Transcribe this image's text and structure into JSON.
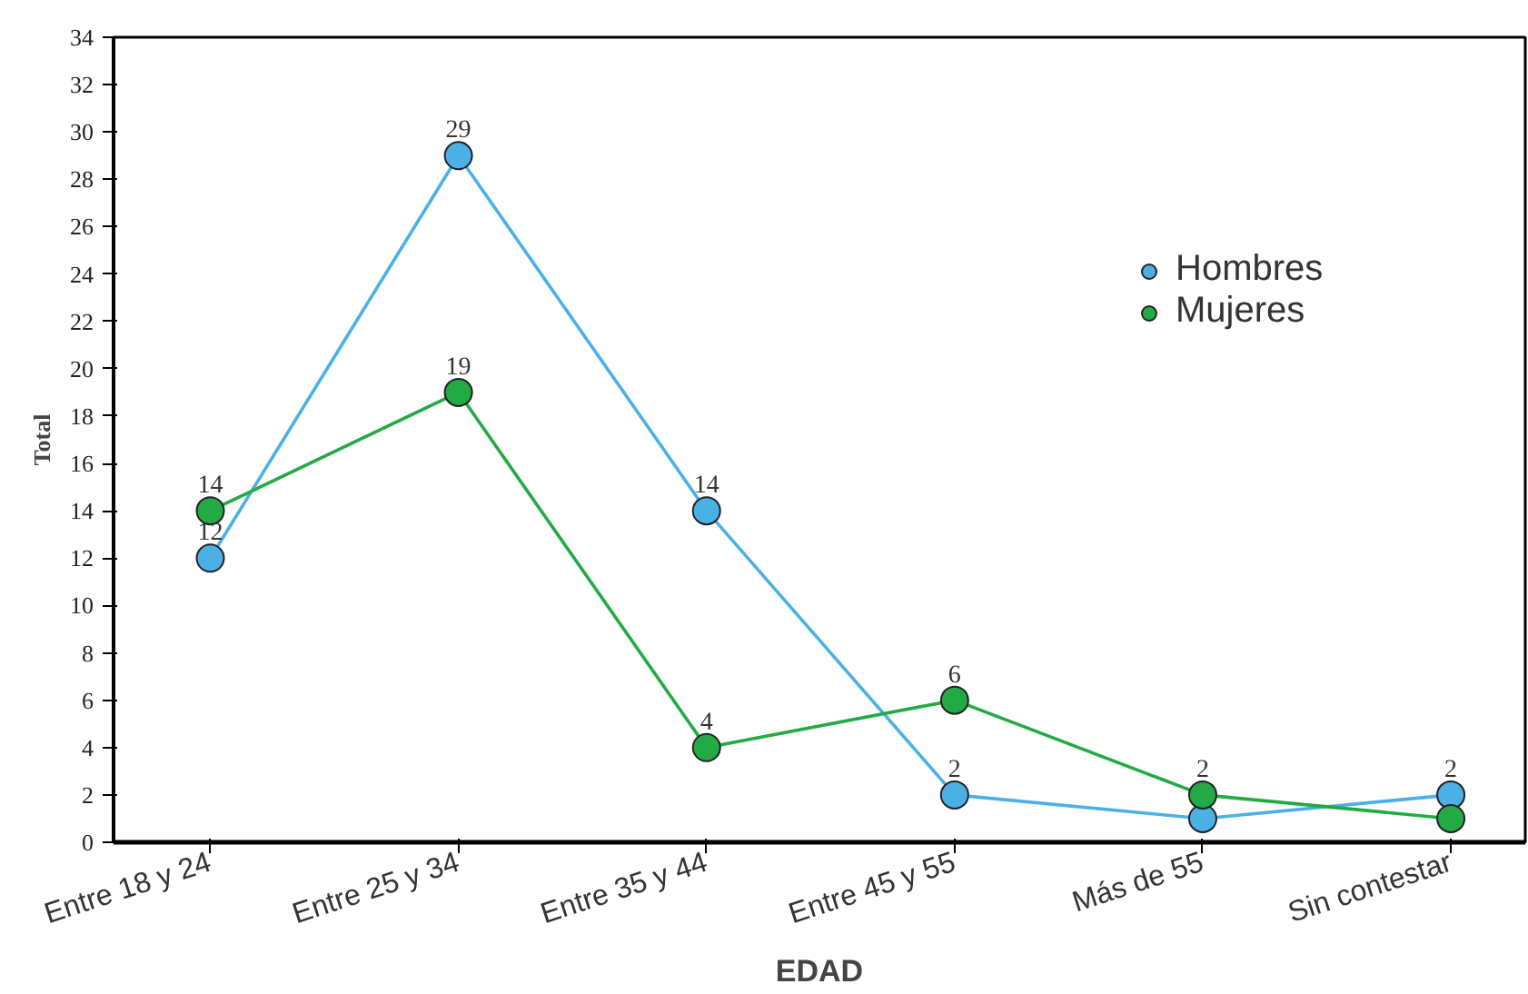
{
  "chart_data": {
    "type": "line",
    "xlabel": "EDAD",
    "ylabel": "Total",
    "categories": [
      "Entre 18 y 24",
      "Entre 25 y 34",
      "Entre 35 y 44",
      "Entre 45 y 55",
      "Más de 55",
      "Sin contestar"
    ],
    "series": [
      {
        "name": "Hombres",
        "color": "#4ab0e6",
        "values": [
          12,
          29,
          14,
          2,
          1,
          2
        ],
        "value_labels": [
          "12",
          "29",
          "14",
          "2",
          null,
          "2"
        ]
      },
      {
        "name": "Mujeres",
        "color": "#22aa44",
        "values": [
          14,
          19,
          4,
          6,
          2,
          1
        ],
        "value_labels": [
          "14",
          "19",
          "4",
          "6",
          "2",
          null
        ]
      }
    ],
    "ylim": [
      0,
      34
    ],
    "yticks": [
      0,
      2,
      4,
      6,
      8,
      10,
      12,
      14,
      16,
      18,
      20,
      22,
      24,
      26,
      28,
      30,
      32,
      34
    ],
    "grid": false,
    "legend": "top right",
    "marker": "circle",
    "line_style": "solid"
  }
}
